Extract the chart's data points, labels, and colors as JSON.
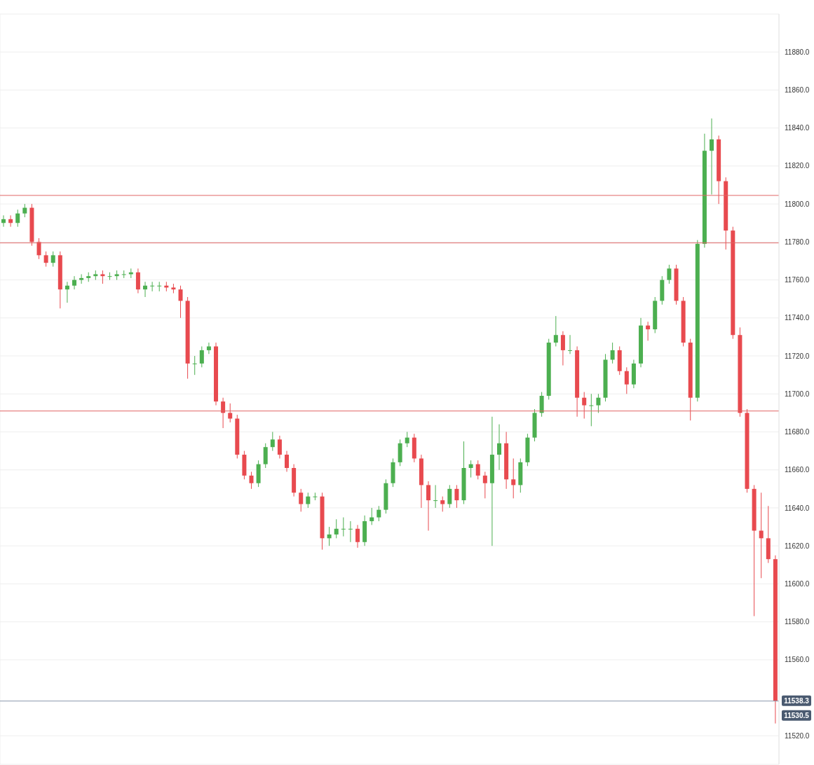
{
  "chart_data": {
    "type": "candlestick",
    "categories": [
      null,
      null,
      null,
      null,
      null,
      null,
      null,
      null,
      null,
      null,
      null,
      null,
      null,
      null,
      null,
      null,
      null,
      null,
      null,
      null,
      null,
      null,
      null,
      null,
      null,
      null,
      null,
      null,
      null,
      null,
      null,
      null,
      null,
      null,
      null,
      null,
      null,
      null,
      null,
      null,
      null,
      null,
      null,
      null,
      null,
      null,
      null,
      null,
      null,
      null,
      null,
      null,
      null,
      null,
      null,
      null,
      null,
      null,
      null,
      null,
      null,
      null,
      null,
      null,
      null,
      null,
      null,
      null,
      null,
      null,
      null,
      null,
      null,
      null,
      null,
      null,
      null,
      null,
      null,
      null,
      null,
      null,
      null,
      null,
      null,
      null,
      null,
      null,
      null,
      null,
      null,
      null,
      null,
      null,
      null,
      null,
      null,
      null,
      null,
      null,
      null,
      null,
      null,
      null,
      null,
      null,
      null,
      null,
      null,
      null
    ],
    "ohlc": [
      [
        11790,
        11794,
        11788,
        11792
      ],
      [
        11792,
        11794,
        11788,
        11790
      ],
      [
        11790,
        11797,
        11788,
        11795
      ],
      [
        11795,
        11800,
        11793,
        11798
      ],
      [
        11798,
        11800,
        11778,
        11780
      ],
      [
        11780,
        11782,
        11771,
        11773
      ],
      [
        11773,
        11775,
        11767,
        11769
      ],
      [
        11769,
        11775,
        11767,
        11773
      ],
      [
        11773,
        11775,
        11745,
        11755
      ],
      [
        11755,
        11759,
        11748,
        11757
      ],
      [
        11757,
        11762,
        11755,
        11760
      ],
      [
        11760,
        11763,
        11758,
        11761
      ],
      [
        11761,
        11764,
        11759,
        11762
      ],
      [
        11762,
        11765,
        11760,
        11763
      ],
      [
        11763,
        11765,
        11758,
        11762
      ],
      [
        11762,
        11764,
        11760,
        11762
      ],
      [
        11762,
        11765,
        11760,
        11763
      ],
      [
        11763,
        11765,
        11761,
        11763
      ],
      [
        11763,
        11766,
        11761,
        11764
      ],
      [
        11764,
        11766,
        11753,
        11755
      ],
      [
        11755,
        11759,
        11751,
        11757
      ],
      [
        11757,
        11759,
        11754,
        11757
      ],
      [
        11757,
        11759,
        11754,
        11757
      ],
      [
        11757,
        11759,
        11754,
        11756
      ],
      [
        11756,
        11758,
        11753,
        11755
      ],
      [
        11755,
        11757,
        11740,
        11749
      ],
      [
        11749,
        11751,
        11708,
        11716
      ],
      [
        11716,
        11720,
        11710,
        11716
      ],
      [
        11716,
        11725,
        11714,
        11723
      ],
      [
        11723,
        11727,
        11721,
        11725
      ],
      [
        11725,
        11727,
        11694,
        11696
      ],
      [
        11696,
        11698,
        11682,
        11690
      ],
      [
        11690,
        11695,
        11685,
        11687
      ],
      [
        11687,
        11689,
        11666,
        11668
      ],
      [
        11668,
        11670,
        11655,
        11657
      ],
      [
        11657,
        11659,
        11650,
        11653
      ],
      [
        11653,
        11665,
        11651,
        11663
      ],
      [
        11663,
        11674,
        11661,
        11672
      ],
      [
        11672,
        11680,
        11670,
        11676
      ],
      [
        11676,
        11678,
        11666,
        11668
      ],
      [
        11668,
        11670,
        11659,
        11661
      ],
      [
        11661,
        11663,
        11646,
        11648
      ],
      [
        11648,
        11650,
        11638,
        11642
      ],
      [
        11642,
        11648,
        11640,
        11646
      ],
      [
        11646,
        11648,
        11644,
        11646
      ],
      [
        11646,
        11648,
        11618,
        11624
      ],
      [
        11624,
        11630,
        11620,
        11626
      ],
      [
        11626,
        11634,
        11624,
        11629
      ],
      [
        11629,
        11635,
        11625,
        11629
      ],
      [
        11629,
        11633,
        11622,
        11629
      ],
      [
        11629,
        11631,
        11619,
        11622
      ],
      [
        11622,
        11636,
        11620,
        11633
      ],
      [
        11633,
        11640,
        11631,
        11635
      ],
      [
        11635,
        11641,
        11633,
        11639
      ],
      [
        11639,
        11655,
        11637,
        11653
      ],
      [
        11653,
        11666,
        11651,
        11664
      ],
      [
        11664,
        11676,
        11662,
        11674
      ],
      [
        11674,
        11680,
        11672,
        11677
      ],
      [
        11677,
        11679,
        11664,
        11666
      ],
      [
        11666,
        11668,
        11640,
        11652
      ],
      [
        11652,
        11654,
        11628,
        11644
      ],
      [
        11644,
        11652,
        11640,
        11644
      ],
      [
        11644,
        11646,
        11638,
        11642
      ],
      [
        11642,
        11652,
        11640,
        11650
      ],
      [
        11650,
        11652,
        11640,
        11644
      ],
      [
        11644,
        11675,
        11642,
        11661
      ],
      [
        11661,
        11665,
        11656,
        11663
      ],
      [
        11663,
        11665,
        11655,
        11657
      ],
      [
        11657,
        11659,
        11645,
        11653
      ],
      [
        11653,
        11688,
        11620,
        11668
      ],
      [
        11668,
        11684,
        11660,
        11674
      ],
      [
        11674,
        11680,
        11650,
        11655
      ],
      [
        11655,
        11666,
        11645,
        11652
      ],
      [
        11652,
        11666,
        11648,
        11664
      ],
      [
        11664,
        11679,
        11662,
        11677
      ],
      [
        11677,
        11692,
        11675,
        11690
      ],
      [
        11690,
        11701,
        11688,
        11699
      ],
      [
        11699,
        11729,
        11697,
        11727
      ],
      [
        11727,
        11741,
        11725,
        11731
      ],
      [
        11731,
        11733,
        11715,
        11723
      ],
      [
        11723,
        11731,
        11721,
        11723
      ],
      [
        11723,
        11725,
        11688,
        11698
      ],
      [
        11698,
        11701,
        11687,
        11694
      ],
      [
        11694,
        11700,
        11683,
        11694
      ],
      [
        11694,
        11700,
        11690,
        11698
      ],
      [
        11698,
        11721,
        11696,
        11718
      ],
      [
        11718,
        11727,
        11716,
        11723
      ],
      [
        11723,
        11725,
        11710,
        11712
      ],
      [
        11712,
        11714,
        11700,
        11705
      ],
      [
        11705,
        11718,
        11703,
        11716
      ],
      [
        11716,
        11740,
        11714,
        11736
      ],
      [
        11736,
        11738,
        11728,
        11734
      ],
      [
        11734,
        11751,
        11732,
        11749
      ],
      [
        11749,
        11762,
        11747,
        11760
      ],
      [
        11760,
        11768,
        11758,
        11766
      ],
      [
        11766,
        11768,
        11747,
        11749
      ],
      [
        11749,
        11751,
        11725,
        11727
      ],
      [
        11727,
        11729,
        11686,
        11698
      ],
      [
        11698,
        11781,
        11696,
        11779
      ],
      [
        11779,
        11837,
        11777,
        11828
      ],
      [
        11828,
        11845,
        11805,
        11834
      ],
      [
        11834,
        11836,
        11800,
        11812
      ],
      [
        11812,
        11814,
        11776,
        11786
      ],
      [
        11786,
        11788,
        11729,
        11731
      ],
      [
        11731,
        11735,
        11688,
        11690
      ],
      [
        11690,
        11692,
        11648,
        11650
      ],
      [
        11650,
        11652,
        11583,
        11628
      ],
      [
        11628,
        11648,
        11603,
        11624
      ],
      [
        11624,
        11641,
        11611,
        11613
      ],
      [
        11613,
        11615,
        11526.5,
        11538.3
      ]
    ],
    "colors": [
      "#4caf50",
      "#e84a4f",
      "#4caf50",
      "#4caf50",
      "#e84a4f",
      "#e84a4f",
      "#e84a4f",
      "#4caf50",
      "#e84a4f",
      "#4caf50",
      "#4caf50",
      "#4caf50",
      "#4caf50",
      "#4caf50",
      "#e84a4f",
      "#4caf50",
      "#4caf50",
      "#4caf50",
      "#4caf50",
      "#e84a4f",
      "#4caf50",
      "#4caf50",
      "#4caf50",
      "#e84a4f",
      "#e84a4f",
      "#e84a4f",
      "#e84a4f",
      "#4caf50",
      "#4caf50",
      "#4caf50",
      "#e84a4f",
      "#e84a4f",
      "#e84a4f",
      "#e84a4f",
      "#e84a4f",
      "#e84a4f",
      "#4caf50",
      "#4caf50",
      "#4caf50",
      "#e84a4f",
      "#e84a4f",
      "#e84a4f",
      "#e84a4f",
      "#4caf50",
      "#4caf50",
      "#e84a4f",
      "#4caf50",
      "#4caf50",
      "#4caf50",
      "#4caf50",
      "#e84a4f",
      "#4caf50",
      "#4caf50",
      "#4caf50",
      "#4caf50",
      "#4caf50",
      "#4caf50",
      "#4caf50",
      "#e84a4f",
      "#e84a4f",
      "#e84a4f",
      "#4caf50",
      "#e84a4f",
      "#4caf50",
      "#e84a4f",
      "#4caf50",
      "#4caf50",
      "#e84a4f",
      "#e84a4f",
      "#4caf50",
      "#4caf50",
      "#e84a4f",
      "#e84a4f",
      "#4caf50",
      "#4caf50",
      "#4caf50",
      "#4caf50",
      "#4caf50",
      "#4caf50",
      "#e84a4f",
      "#4caf50",
      "#e84a4f",
      "#e84a4f",
      "#4caf50",
      "#4caf50",
      "#4caf50",
      "#4caf50",
      "#e84a4f",
      "#e84a4f",
      "#4caf50",
      "#4caf50",
      "#e84a4f",
      "#4caf50",
      "#4caf50",
      "#4caf50",
      "#e84a4f",
      "#e84a4f",
      "#e84a4f",
      "#4caf50",
      "#4caf50",
      "#4caf50",
      "#e84a4f",
      "#e84a4f",
      "#e84a4f",
      "#e84a4f",
      "#e84a4f",
      "#e84a4f",
      "#e84a4f",
      "#e84a4f",
      "#e84a4f"
    ],
    "ylim": [
      11505,
      11900
    ],
    "yticks": [
      {
        "value": 11520,
        "label": "11520.0"
      },
      {
        "value": 11560,
        "label": "11560.0"
      },
      {
        "value": 11580,
        "label": "11580.0"
      },
      {
        "value": 11600,
        "label": "11600.0"
      },
      {
        "value": 11620,
        "label": "11620.0"
      },
      {
        "value": 11640,
        "label": "11640.0"
      },
      {
        "value": 11660,
        "label": "11660.0"
      },
      {
        "value": 11680,
        "label": "11680.0"
      },
      {
        "value": 11700,
        "label": "11700.0"
      },
      {
        "value": 11720,
        "label": "11720.0"
      },
      {
        "value": 11740,
        "label": "11740.0"
      },
      {
        "value": 11760,
        "label": "11760.0"
      },
      {
        "value": 11780,
        "label": "11780.0"
      },
      {
        "value": 11800,
        "label": "11800.0"
      },
      {
        "value": 11820,
        "label": "11820.0"
      },
      {
        "value": 11840,
        "label": "11840.0"
      },
      {
        "value": 11860,
        "label": "11860.0"
      },
      {
        "value": 11880,
        "label": "11880.0"
      }
    ],
    "ref_lines": [
      {
        "axis": "y",
        "value": 11804.5,
        "color": "#e06666"
      },
      {
        "axis": "y",
        "value": 11779.5,
        "color": "#e06666"
      },
      {
        "axis": "y",
        "value": 11691,
        "color": "#e06666"
      },
      {
        "axis": "y",
        "value": 11538.3,
        "label": "11538.3",
        "color": "#8a99ad"
      }
    ],
    "annotations": [
      "11530.5"
    ],
    "grid": true
  }
}
